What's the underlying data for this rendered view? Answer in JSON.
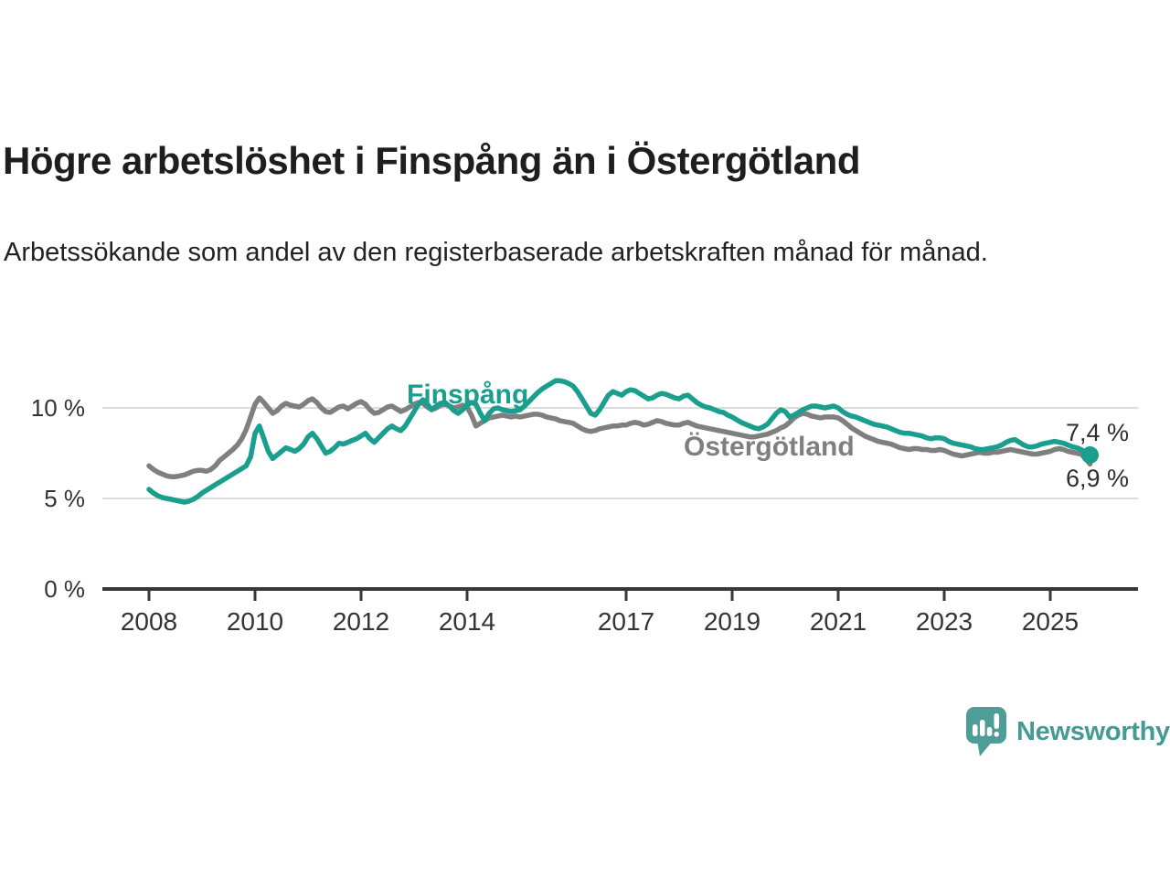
{
  "header": {
    "title": "Högre arbetslöshet i Finspång än i Östergötland",
    "subtitle": "Arbetssökande som andel av den registerbaserade arbetskraften månad för månad."
  },
  "chart_data": {
    "type": "line",
    "title": "Högre arbetslöshet i Finspång än i Östergötland",
    "subtitle": "Arbetssökande som andel av den registerbaserade arbetskraften månad för månad.",
    "x_unit": "month",
    "x_start": "2008-01",
    "x_end": "2025-10",
    "xticks": [
      2008,
      2010,
      2012,
      2014,
      2017,
      2019,
      2021,
      2023,
      2025
    ],
    "yticks": [
      {
        "value": 0,
        "label": "0 %"
      },
      {
        "value": 5,
        "label": "5 %"
      },
      {
        "value": 10,
        "label": "10 %"
      }
    ],
    "ylim": [
      0,
      12.8
    ],
    "grid": "horizontal",
    "legend_position": "inline-labels",
    "series": [
      {
        "name": "Finspång",
        "color": "#1a9e8d",
        "end_label": "7,4 %",
        "end_value": 7.4,
        "values": [
          5.5,
          5.3,
          5.15,
          5.05,
          5.0,
          4.95,
          4.9,
          4.85,
          4.8,
          4.85,
          4.95,
          5.1,
          5.3,
          5.45,
          5.6,
          5.75,
          5.9,
          6.05,
          6.2,
          6.35,
          6.5,
          6.65,
          6.8,
          7.3,
          8.6,
          9.0,
          8.3,
          7.6,
          7.2,
          7.4,
          7.6,
          7.8,
          7.7,
          7.6,
          7.75,
          8.0,
          8.4,
          8.6,
          8.3,
          7.9,
          7.5,
          7.6,
          7.8,
          8.05,
          8.0,
          8.1,
          8.2,
          8.3,
          8.45,
          8.6,
          8.3,
          8.1,
          8.35,
          8.6,
          8.85,
          9.0,
          8.85,
          8.75,
          9.0,
          9.4,
          9.8,
          10.2,
          10.45,
          10.2,
          9.9,
          10.1,
          10.25,
          10.3,
          10.1,
          9.85,
          9.7,
          9.9,
          10.15,
          10.3,
          10.2,
          9.7,
          9.3,
          9.7,
          9.95,
          10.0,
          9.9,
          9.85,
          9.8,
          9.85,
          9.9,
          10.1,
          10.35,
          10.6,
          10.85,
          11.05,
          11.2,
          11.35,
          11.5,
          11.5,
          11.45,
          11.35,
          11.2,
          10.9,
          10.5,
          10.1,
          9.7,
          9.6,
          9.9,
          10.3,
          10.7,
          10.9,
          10.8,
          10.7,
          10.9,
          11.0,
          10.95,
          10.8,
          10.65,
          10.5,
          10.55,
          10.7,
          10.8,
          10.75,
          10.65,
          10.55,
          10.5,
          10.65,
          10.7,
          10.5,
          10.3,
          10.15,
          10.05,
          10.0,
          9.9,
          9.8,
          9.75,
          9.6,
          9.5,
          9.35,
          9.2,
          9.1,
          9.0,
          8.9,
          8.85,
          8.95,
          9.1,
          9.4,
          9.7,
          9.9,
          9.8,
          9.5,
          9.6,
          9.75,
          9.9,
          10.0,
          10.1,
          10.1,
          10.05,
          10.0,
          10.05,
          10.1,
          10.0,
          9.8,
          9.65,
          9.55,
          9.5,
          9.4,
          9.3,
          9.2,
          9.1,
          9.05,
          9.0,
          8.95,
          8.85,
          8.75,
          8.65,
          8.6,
          8.6,
          8.55,
          8.5,
          8.45,
          8.35,
          8.3,
          8.35,
          8.35,
          8.3,
          8.15,
          8.05,
          8.0,
          7.95,
          7.9,
          7.85,
          7.75,
          7.7,
          7.7,
          7.75,
          7.8,
          7.85,
          7.95,
          8.1,
          8.2,
          8.25,
          8.1,
          7.95,
          7.85,
          7.85,
          7.9,
          8.0,
          8.05,
          8.1,
          8.15,
          8.1,
          8.05,
          7.95,
          7.85,
          7.8,
          7.7,
          7.5,
          7.4
        ]
      },
      {
        "name": "Östergötland",
        "color": "#7f7f7f",
        "end_label": "6,9 %",
        "end_value": 6.9,
        "values": [
          6.8,
          6.6,
          6.45,
          6.35,
          6.25,
          6.2,
          6.2,
          6.25,
          6.3,
          6.4,
          6.5,
          6.55,
          6.55,
          6.5,
          6.6,
          6.8,
          7.1,
          7.3,
          7.5,
          7.7,
          7.95,
          8.3,
          8.8,
          9.5,
          10.2,
          10.55,
          10.3,
          10.0,
          9.7,
          9.85,
          10.1,
          10.25,
          10.15,
          10.1,
          10.05,
          10.2,
          10.4,
          10.5,
          10.3,
          10.0,
          9.8,
          9.75,
          9.9,
          10.05,
          10.1,
          9.95,
          10.1,
          10.25,
          10.35,
          10.2,
          9.9,
          9.7,
          9.75,
          9.9,
          10.05,
          10.1,
          9.95,
          9.8,
          9.9,
          10.05,
          10.2,
          10.3,
          10.25,
          10.05,
          9.9,
          10.0,
          10.15,
          10.2,
          10.1,
          10.0,
          10.05,
          10.15,
          10.05,
          9.6,
          9.0,
          9.15,
          9.3,
          9.45,
          9.5,
          9.55,
          9.6,
          9.55,
          9.5,
          9.55,
          9.5,
          9.55,
          9.6,
          9.65,
          9.65,
          9.6,
          9.5,
          9.45,
          9.4,
          9.3,
          9.25,
          9.2,
          9.15,
          9.0,
          8.85,
          8.75,
          8.7,
          8.75,
          8.85,
          8.9,
          8.95,
          9.0,
          9.0,
          9.05,
          9.05,
          9.15,
          9.2,
          9.15,
          9.05,
          9.1,
          9.2,
          9.3,
          9.25,
          9.15,
          9.1,
          9.05,
          9.05,
          9.15,
          9.2,
          9.1,
          9.0,
          8.95,
          8.9,
          8.85,
          8.8,
          8.75,
          8.7,
          8.65,
          8.6,
          8.55,
          8.5,
          8.45,
          8.4,
          8.4,
          8.45,
          8.5,
          8.55,
          8.65,
          8.75,
          8.9,
          9.0,
          9.2,
          9.45,
          9.6,
          9.7,
          9.65,
          9.55,
          9.5,
          9.45,
          9.5,
          9.5,
          9.5,
          9.45,
          9.3,
          9.1,
          8.9,
          8.75,
          8.6,
          8.45,
          8.35,
          8.25,
          8.15,
          8.1,
          8.05,
          8.0,
          7.9,
          7.8,
          7.75,
          7.7,
          7.75,
          7.75,
          7.7,
          7.7,
          7.65,
          7.65,
          7.7,
          7.65,
          7.55,
          7.45,
          7.4,
          7.35,
          7.4,
          7.45,
          7.5,
          7.55,
          7.5,
          7.5,
          7.55,
          7.55,
          7.6,
          7.65,
          7.7,
          7.65,
          7.6,
          7.55,
          7.5,
          7.45,
          7.45,
          7.5,
          7.55,
          7.6,
          7.7,
          7.75,
          7.7,
          7.6,
          7.55,
          7.5,
          7.45,
          7.2,
          6.9
        ]
      }
    ]
  },
  "branding": {
    "wordmark": "Newsworthy",
    "logo_icon": "speech-bubble-bar-chart",
    "color": "#459a94",
    "bubble_color": "#4f9d97"
  }
}
